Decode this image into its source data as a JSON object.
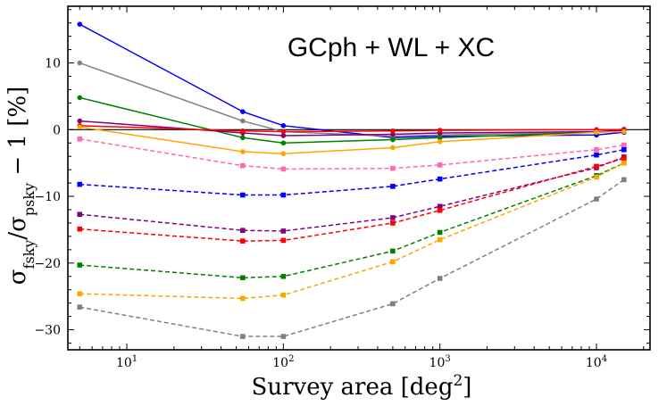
{
  "chart_data": {
    "type": "line",
    "annotation": "GCph + WL + XC",
    "xlabel": "Survey area [deg²]",
    "ylabel": "σ_fsky/σ_psky − 1 [%]",
    "xscale": "log",
    "xlim": [
      4.2,
      22000
    ],
    "ylim": [
      -33,
      18.5
    ],
    "x": [
      5,
      55,
      100,
      500,
      1000,
      10000,
      15000
    ],
    "yticks": [
      10,
      0,
      -10,
      -20,
      -30
    ],
    "ytick_labels": [
      "10",
      "0",
      "−10",
      "−20",
      "−30"
    ],
    "xticks": [
      10,
      100,
      1000,
      10000
    ],
    "xtick_labels": [
      {
        "base": "10",
        "exp": "1"
      },
      {
        "base": "10",
        "exp": "2"
      },
      {
        "base": "10",
        "exp": "3"
      },
      {
        "base": "10",
        "exp": "4"
      }
    ],
    "series": [
      {
        "name": "solid blue",
        "color": "#0000ff",
        "style": "solid",
        "marker": "circle",
        "values": [
          15.8,
          2.7,
          0.6,
          -1.2,
          -1.0,
          -0.8,
          -0.4
        ]
      },
      {
        "name": "solid gray",
        "color": "#808080",
        "style": "solid",
        "marker": "circle",
        "values": [
          10.0,
          1.3,
          -0.3,
          -1.0,
          -0.8,
          -0.4,
          0.1
        ]
      },
      {
        "name": "solid green",
        "color": "#008000",
        "style": "solid",
        "marker": "circle",
        "values": [
          4.8,
          -1.2,
          -2.0,
          -1.5,
          -1.2,
          -0.4,
          -0.2
        ]
      },
      {
        "name": "solid purple",
        "color": "#800080",
        "style": "solid",
        "marker": "circle",
        "values": [
          1.3,
          -0.5,
          -0.9,
          -0.7,
          -0.5,
          -0.3,
          -0.1
        ]
      },
      {
        "name": "solid red",
        "color": "#ff0000",
        "style": "solid",
        "marker": "circle",
        "values": [
          0.6,
          -0.2,
          -0.3,
          -0.2,
          -0.1,
          0.0,
          0.0
        ]
      },
      {
        "name": "solid orange",
        "color": "#ffa500",
        "style": "solid",
        "marker": "circle",
        "values": [
          0.4,
          -3.3,
          -3.6,
          -2.7,
          -1.8,
          -0.4,
          -0.3
        ]
      },
      {
        "name": "dashed pink",
        "color": "#ff69b4",
        "style": "dashed",
        "marker": "square",
        "values": [
          -1.4,
          -5.4,
          -5.9,
          -5.8,
          -5.3,
          -3.0,
          -2.3
        ]
      },
      {
        "name": "dashed blue",
        "color": "#0000ff",
        "style": "dashed",
        "marker": "square",
        "values": [
          -8.2,
          -9.8,
          -9.8,
          -8.5,
          -7.4,
          -3.8,
          -3.0
        ]
      },
      {
        "name": "dashed purple",
        "color": "#800080",
        "style": "dashed",
        "marker": "square",
        "values": [
          -12.7,
          -15.1,
          -15.2,
          -13.2,
          -11.5,
          -5.7,
          -4.1
        ]
      },
      {
        "name": "dashed red",
        "color": "#ff0000",
        "style": "dashed",
        "marker": "square",
        "values": [
          -14.9,
          -16.7,
          -16.6,
          -14.0,
          -12.1,
          -5.5,
          -4.3
        ]
      },
      {
        "name": "dashed green",
        "color": "#008000",
        "style": "dashed",
        "marker": "square",
        "values": [
          -20.3,
          -22.2,
          -22.0,
          -18.2,
          -15.4,
          -6.9,
          -5.0
        ]
      },
      {
        "name": "dashed orange",
        "color": "#ffa500",
        "style": "dashed",
        "marker": "square",
        "values": [
          -24.6,
          -25.3,
          -24.8,
          -19.8,
          -16.5,
          -7.1,
          -5.0
        ]
      },
      {
        "name": "dashed gray",
        "color": "#808080",
        "style": "dashed",
        "marker": "square",
        "values": [
          -26.6,
          -31.0,
          -31.0,
          -26.1,
          -22.3,
          -10.4,
          -7.5
        ]
      }
    ]
  }
}
